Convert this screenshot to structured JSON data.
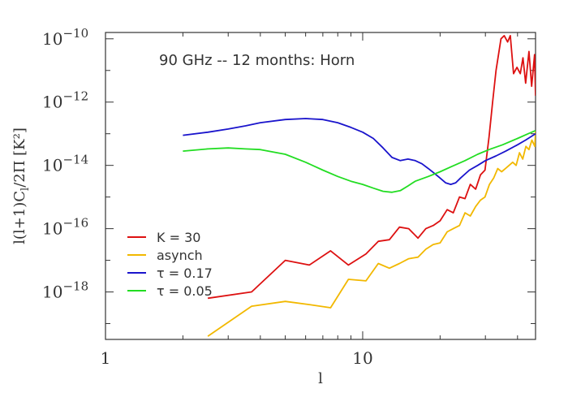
{
  "chart_data": {
    "type": "line",
    "annotation": "90 GHz -- 12 months:  Horn",
    "xlabel": "l",
    "ylabel_main": "l(l+1)C",
    "ylabel_sub": "l",
    "ylabel_tail": "/2Π  [K²]",
    "x_scale": "log",
    "y_scale": "log",
    "xlim": [
      1,
      47
    ],
    "ylim_exp": [
      -19.5,
      -9.8
    ],
    "x_ticks": [
      {
        "value": 1,
        "label": "1"
      },
      {
        "value": 10,
        "label": "10"
      }
    ],
    "y_ticks": [
      {
        "exp": -10,
        "label": "10",
        "sup": "−10"
      },
      {
        "exp": -12,
        "label": "10",
        "sup": "−12"
      },
      {
        "exp": -14,
        "label": "10",
        "sup": "−14"
      },
      {
        "exp": -16,
        "label": "10",
        "sup": "−16"
      },
      {
        "exp": -18,
        "label": "10",
        "sup": "−18"
      }
    ],
    "legend_position": "lower-left",
    "series": [
      {
        "name": "K = 30",
        "color": "#dd1111",
        "points": [
          [
            2.5,
            -18.2
          ],
          [
            3.7,
            -18.0
          ],
          [
            5,
            -17.0
          ],
          [
            6.2,
            -17.15
          ],
          [
            7.5,
            -16.7
          ],
          [
            8.8,
            -17.15
          ],
          [
            10.3,
            -16.8
          ],
          [
            11.5,
            -16.4
          ],
          [
            12.7,
            -16.35
          ],
          [
            13.9,
            -15.95
          ],
          [
            15.1,
            -16.0
          ],
          [
            16.4,
            -16.3
          ],
          [
            17.6,
            -16.0
          ],
          [
            18.8,
            -15.9
          ],
          [
            20,
            -15.75
          ],
          [
            21.3,
            -15.4
          ],
          [
            22.5,
            -15.5
          ],
          [
            23.8,
            -15.0
          ],
          [
            25,
            -15.05
          ],
          [
            26.2,
            -14.6
          ],
          [
            27.5,
            -14.75
          ],
          [
            28.7,
            -14.3
          ],
          [
            29.9,
            -14.15
          ],
          [
            31,
            -13.1
          ],
          [
            32,
            -12.0
          ],
          [
            33,
            -11.0
          ],
          [
            34.5,
            -10.0
          ],
          [
            35.5,
            -9.9
          ],
          [
            36.6,
            -10.1
          ],
          [
            37.5,
            -9.9
          ],
          [
            38.6,
            -11.1
          ],
          [
            39.8,
            -10.9
          ],
          [
            41,
            -11.1
          ],
          [
            42,
            -10.6
          ],
          [
            43,
            -11.4
          ],
          [
            44.3,
            -10.4
          ],
          [
            45.4,
            -11.5
          ],
          [
            46.6,
            -10.5
          ],
          [
            47,
            -11.8
          ]
        ]
      },
      {
        "name": "asynch",
        "color": "#f2b800",
        "points": [
          [
            2.5,
            -19.4
          ],
          [
            3.7,
            -18.45
          ],
          [
            5,
            -18.3
          ],
          [
            6.2,
            -18.4
          ],
          [
            7.5,
            -18.5
          ],
          [
            8.8,
            -17.6
          ],
          [
            10.3,
            -17.65
          ],
          [
            11.5,
            -17.1
          ],
          [
            12.7,
            -17.25
          ],
          [
            13.9,
            -17.1
          ],
          [
            15.1,
            -16.95
          ],
          [
            16.4,
            -16.9
          ],
          [
            17.6,
            -16.65
          ],
          [
            18.8,
            -16.5
          ],
          [
            20,
            -16.45
          ],
          [
            21.3,
            -16.1
          ],
          [
            22.5,
            -16.0
          ],
          [
            23.8,
            -15.9
          ],
          [
            25,
            -15.5
          ],
          [
            26.2,
            -15.6
          ],
          [
            27.5,
            -15.3
          ],
          [
            28.7,
            -15.1
          ],
          [
            29.9,
            -15.0
          ],
          [
            31.1,
            -14.6
          ],
          [
            32.3,
            -14.4
          ],
          [
            33.5,
            -14.1
          ],
          [
            34.7,
            -14.2
          ],
          [
            35.9,
            -14.1
          ],
          [
            37.1,
            -14.0
          ],
          [
            38.3,
            -13.9
          ],
          [
            39.5,
            -14.0
          ],
          [
            40.7,
            -13.6
          ],
          [
            41.9,
            -13.8
          ],
          [
            43.1,
            -13.4
          ],
          [
            44.3,
            -13.5
          ],
          [
            45.5,
            -13.2
          ],
          [
            46.7,
            -13.4
          ],
          [
            47,
            -12.9
          ]
        ]
      },
      {
        "name": "τ = 0.17",
        "color": "#1a14cc",
        "points": [
          [
            2,
            -13.05
          ],
          [
            2.5,
            -12.95
          ],
          [
            3,
            -12.85
          ],
          [
            3.5,
            -12.75
          ],
          [
            4,
            -12.65
          ],
          [
            5,
            -12.55
          ],
          [
            6,
            -12.52
          ],
          [
            7,
            -12.55
          ],
          [
            8,
            -12.65
          ],
          [
            9,
            -12.8
          ],
          [
            10,
            -12.95
          ],
          [
            11,
            -13.15
          ],
          [
            12,
            -13.45
          ],
          [
            13,
            -13.75
          ],
          [
            14,
            -13.85
          ],
          [
            15,
            -13.8
          ],
          [
            16,
            -13.85
          ],
          [
            17,
            -13.95
          ],
          [
            18,
            -14.1
          ],
          [
            19,
            -14.25
          ],
          [
            20,
            -14.4
          ],
          [
            21,
            -14.55
          ],
          [
            22,
            -14.6
          ],
          [
            23,
            -14.55
          ],
          [
            24,
            -14.4
          ],
          [
            26,
            -14.15
          ],
          [
            28,
            -14.0
          ],
          [
            30,
            -13.85
          ],
          [
            33,
            -13.7
          ],
          [
            36,
            -13.55
          ],
          [
            40,
            -13.35
          ],
          [
            43,
            -13.2
          ],
          [
            47,
            -13.0
          ]
        ]
      },
      {
        "name": "τ = 0.05",
        "color": "#22dd22",
        "points": [
          [
            2,
            -13.55
          ],
          [
            2.5,
            -13.48
          ],
          [
            3,
            -13.45
          ],
          [
            3.5,
            -13.48
          ],
          [
            4,
            -13.5
          ],
          [
            5,
            -13.65
          ],
          [
            6,
            -13.9
          ],
          [
            7,
            -14.15
          ],
          [
            8,
            -14.35
          ],
          [
            9,
            -14.5
          ],
          [
            10,
            -14.6
          ],
          [
            11,
            -14.72
          ],
          [
            12,
            -14.82
          ],
          [
            13,
            -14.85
          ],
          [
            14,
            -14.8
          ],
          [
            15,
            -14.65
          ],
          [
            16,
            -14.5
          ],
          [
            18,
            -14.35
          ],
          [
            20,
            -14.2
          ],
          [
            22,
            -14.05
          ],
          [
            25,
            -13.85
          ],
          [
            28,
            -13.65
          ],
          [
            31,
            -13.5
          ],
          [
            35,
            -13.35
          ],
          [
            40,
            -13.15
          ],
          [
            44,
            -13.0
          ],
          [
            47,
            -12.9
          ]
        ]
      }
    ]
  }
}
